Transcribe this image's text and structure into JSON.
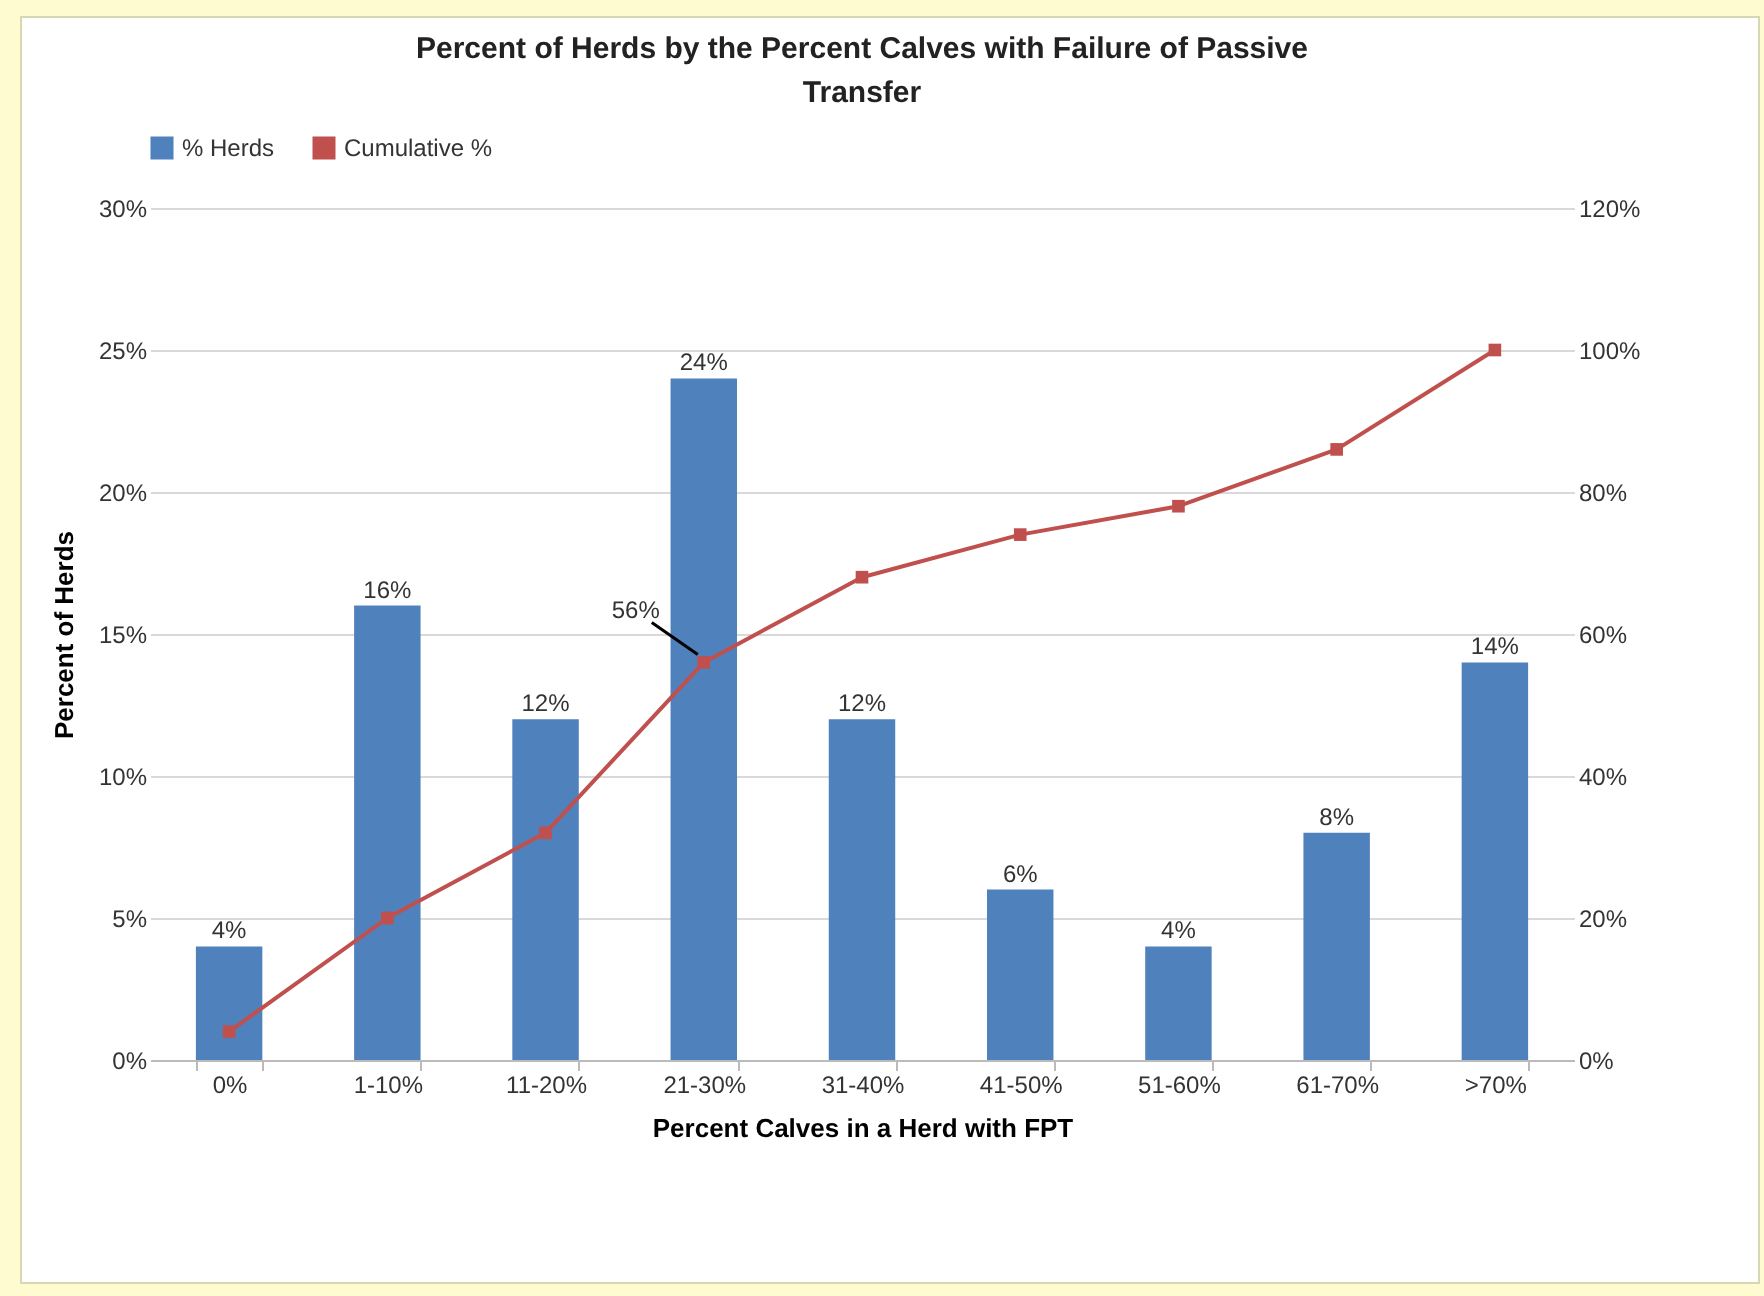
{
  "chart_data": {
    "type": "bar",
    "title": "Percent of Herds by the Percent Calves with Failure of Passive Transfer",
    "xlabel": "Percent Calves in a Herd with FPT",
    "ylabel": "Percent of Herds",
    "categories": [
      "0%",
      "1-10%",
      "11-20%",
      "21-30%",
      "31-40%",
      "41-50%",
      "51-60%",
      "61-70%",
      ">70%"
    ],
    "series": [
      {
        "name": "% Herds",
        "color": "#4f81bd",
        "values": [
          4,
          16,
          12,
          24,
          12,
          6,
          4,
          8,
          14
        ],
        "value_labels": [
          "4%",
          "16%",
          "12%",
          "24%",
          "12%",
          "6%",
          "4%",
          "8%",
          "14%"
        ]
      },
      {
        "name": "Cumulative %",
        "type": "line",
        "axis": "y2",
        "color": "#c0504d",
        "marker": "square",
        "values": [
          4,
          20,
          32,
          56,
          68,
          74,
          78,
          86,
          100
        ],
        "value_labels": [
          null,
          null,
          null,
          "56%",
          null,
          null,
          null,
          null,
          null
        ]
      }
    ],
    "ylim": [
      0,
      30
    ],
    "yticks": [
      {
        "value": 0,
        "label": "0%"
      },
      {
        "value": 5,
        "label": "5%"
      },
      {
        "value": 10,
        "label": "10%"
      },
      {
        "value": 15,
        "label": "15%"
      },
      {
        "value": 20,
        "label": "20%"
      },
      {
        "value": 25,
        "label": "25%"
      },
      {
        "value": 30,
        "label": "30%"
      }
    ],
    "y2lim": [
      0,
      120
    ],
    "y2ticks": [
      {
        "value": 0,
        "label": "0%"
      },
      {
        "value": 20,
        "label": "20%"
      },
      {
        "value": 40,
        "label": "40%"
      },
      {
        "value": 60,
        "label": "60%"
      },
      {
        "value": 80,
        "label": "80%"
      },
      {
        "value": 100,
        "label": "100%"
      },
      {
        "value": 120,
        "label": "120%"
      }
    ],
    "grid": "y",
    "legend": "top"
  }
}
